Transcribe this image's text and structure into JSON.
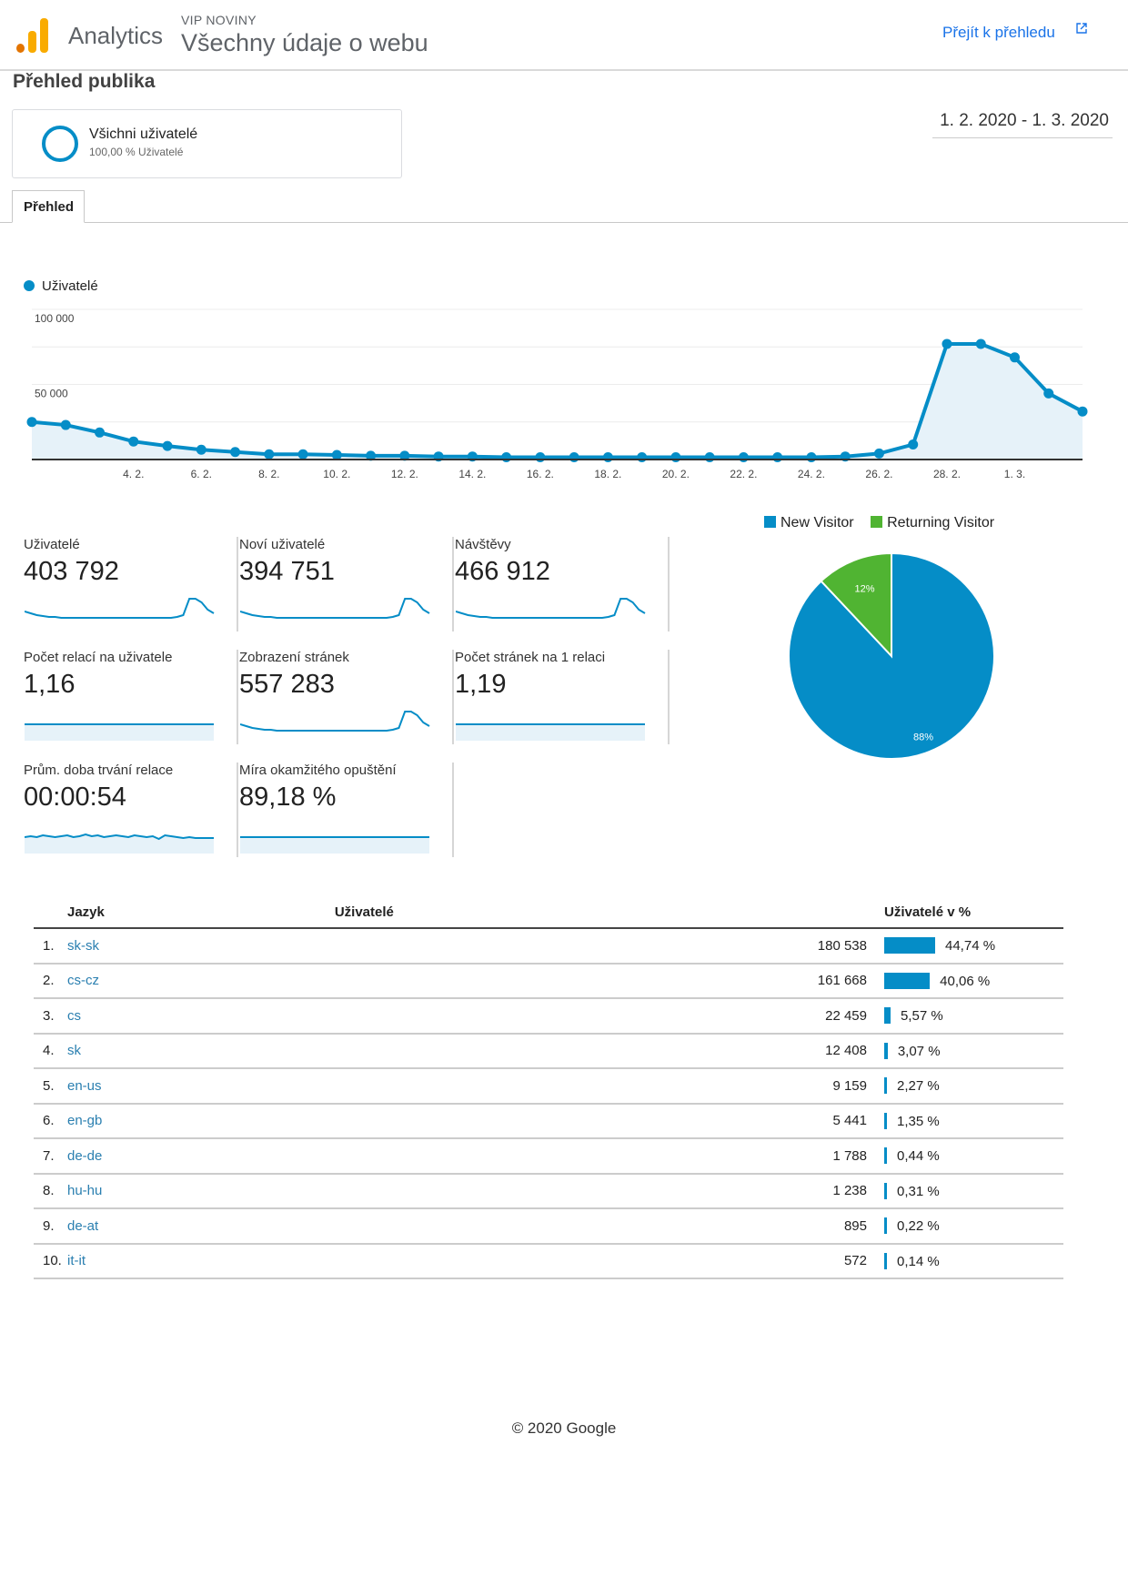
{
  "header": {
    "app_name": "Analytics",
    "account": "VIP NOVINY",
    "property": "Všechny údaje o webu",
    "goto_label": "Přejít k přehledu"
  },
  "page_title": "Přehled publika",
  "segment": {
    "name": "Všichni uživatelé",
    "sub": "100,00 % Uživatelé"
  },
  "date_range": "1. 2. 2020 - 1. 3. 2020",
  "tabs": [
    {
      "label": "Přehled"
    }
  ],
  "colors": {
    "accent": "#058dc7",
    "returning": "#50b432",
    "link": "#1a73e8"
  },
  "chart_data": [
    {
      "type": "area",
      "series": [
        {
          "name": "Uživatelé",
          "values": [
            25000,
            23000,
            18000,
            12000,
            9000,
            6500,
            5000,
            3500,
            3500,
            3000,
            2500,
            2500,
            2000,
            2000,
            1500,
            1500,
            1500,
            1500,
            1500,
            1500,
            1500,
            1500,
            1500,
            1500,
            2000,
            4000,
            10000,
            77000,
            77000,
            68000,
            44000,
            32000
          ]
        }
      ],
      "x_ticks": [
        "4. 2.",
        "6. 2.",
        "8. 2.",
        "10. 2.",
        "12. 2.",
        "14. 2.",
        "16. 2.",
        "18. 2.",
        "20. 2.",
        "22. 2.",
        "24. 2.",
        "26. 2.",
        "28. 2.",
        "1. 3."
      ],
      "y_ticks": [
        "100 000",
        "50 000"
      ],
      "ylim": [
        0,
        100000
      ]
    },
    {
      "type": "pie",
      "legend": [
        "New Visitor",
        "Returning Visitor"
      ],
      "values": [
        88,
        12
      ],
      "labels": [
        "88%",
        "12%"
      ],
      "colors": [
        "#058dc7",
        "#50b432"
      ]
    }
  ],
  "metrics": [
    {
      "label": "Uživatelé",
      "value": "403 792",
      "spark": "spike"
    },
    {
      "label": "Noví uživatelé",
      "value": "394 751",
      "spark": "spike"
    },
    {
      "label": "Návštěvy",
      "value": "466 912",
      "spark": "spike"
    },
    {
      "label": "Počet relací na uživatele",
      "value": "1,16",
      "spark": "flat"
    },
    {
      "label": "Zobrazení stránek",
      "value": "557 283",
      "spark": "spike"
    },
    {
      "label": "Počet stránek na 1 relaci",
      "value": "1,19",
      "spark": "flat"
    },
    {
      "label": "Prům. doba trvání relace",
      "value": "00:00:54",
      "spark": "noisy"
    },
    {
      "label": "Míra okamžitého opuštění",
      "value": "89,18 %",
      "spark": "flat"
    }
  ],
  "language_table": {
    "headers": {
      "name": "Jazyk",
      "users": "Uživatelé",
      "pct": "Uživatelé v %"
    },
    "rows": [
      {
        "rank": "1.",
        "name": "sk-sk",
        "users": "180 538",
        "pct": "44,74 %",
        "share": 44.74
      },
      {
        "rank": "2.",
        "name": "cs-cz",
        "users": "161 668",
        "pct": "40,06 %",
        "share": 40.06
      },
      {
        "rank": "3.",
        "name": "cs",
        "users": "22 459",
        "pct": "5,57 %",
        "share": 5.57
      },
      {
        "rank": "4.",
        "name": "sk",
        "users": "12 408",
        "pct": "3,07 %",
        "share": 3.07
      },
      {
        "rank": "5.",
        "name": "en-us",
        "users": "9 159",
        "pct": "2,27 %",
        "share": 2.27
      },
      {
        "rank": "6.",
        "name": "en-gb",
        "users": "5 441",
        "pct": "1,35 %",
        "share": 1.35
      },
      {
        "rank": "7.",
        "name": "de-de",
        "users": "1 788",
        "pct": "0,44 %",
        "share": 0.44
      },
      {
        "rank": "8.",
        "name": "hu-hu",
        "users": "1 238",
        "pct": "0,31 %",
        "share": 0.31
      },
      {
        "rank": "9.",
        "name": "de-at",
        "users": "895",
        "pct": "0,22 %",
        "share": 0.22
      },
      {
        "rank": "10.",
        "name": "it-it",
        "users": "572",
        "pct": "0,14 %",
        "share": 0.14
      }
    ]
  },
  "footer": "© 2020 Google"
}
